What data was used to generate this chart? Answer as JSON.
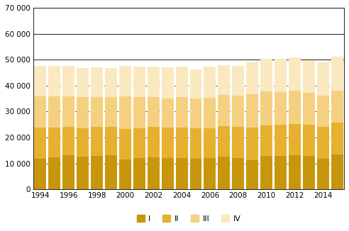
{
  "years": [
    1994,
    1995,
    1996,
    1997,
    1998,
    1999,
    2000,
    2001,
    2002,
    2003,
    2004,
    2005,
    2006,
    2007,
    2008,
    2009,
    2010,
    2011,
    2012,
    2013,
    2014,
    2015
  ],
  "Q1": [
    11900,
    12300,
    13100,
    12700,
    13000,
    13200,
    11600,
    12100,
    12300,
    12200,
    12100,
    11800,
    12100,
    12600,
    12100,
    11400,
    12900,
    13000,
    13100,
    12900,
    11900,
    13400
  ],
  "Q2": [
    11900,
    11500,
    10900,
    11000,
    11000,
    10800,
    11700,
    11600,
    11700,
    11700,
    11800,
    11900,
    11600,
    11900,
    12100,
    12500,
    11700,
    11800,
    12000,
    12100,
    12100,
    12300
  ],
  "Q3": [
    12100,
    12100,
    11900,
    11900,
    11700,
    11700,
    12500,
    11900,
    11600,
    11200,
    11600,
    11300,
    11600,
    11900,
    12000,
    12800,
    13100,
    12600,
    13000,
    12100,
    12100,
    12400
  ],
  "Q4": [
    11700,
    11700,
    11600,
    11200,
    11400,
    11200,
    11900,
    11600,
    11600,
    11900,
    11900,
    11300,
    11900,
    11400,
    11400,
    12300,
    12500,
    12900,
    12900,
    12800,
    12900,
    13000
  ],
  "colors": [
    "#c8960c",
    "#e8b030",
    "#f5d080",
    "#fae8c0"
  ],
  "ylim": [
    0,
    70000
  ],
  "yticks": [
    0,
    10000,
    20000,
    30000,
    40000,
    50000,
    60000,
    70000
  ],
  "ytick_labels": [
    "0",
    "10 000",
    "20 000",
    "30 000",
    "40 000",
    "50 000",
    "60 000",
    "70 000"
  ],
  "legend_labels": [
    "I",
    "II",
    "III",
    "IV"
  ],
  "bar_width": 0.85,
  "background_color": "#ffffff",
  "solid_yticks": [
    0,
    50000,
    60000,
    70000
  ],
  "dashed_yticks": [
    10000,
    20000,
    30000,
    40000
  ]
}
